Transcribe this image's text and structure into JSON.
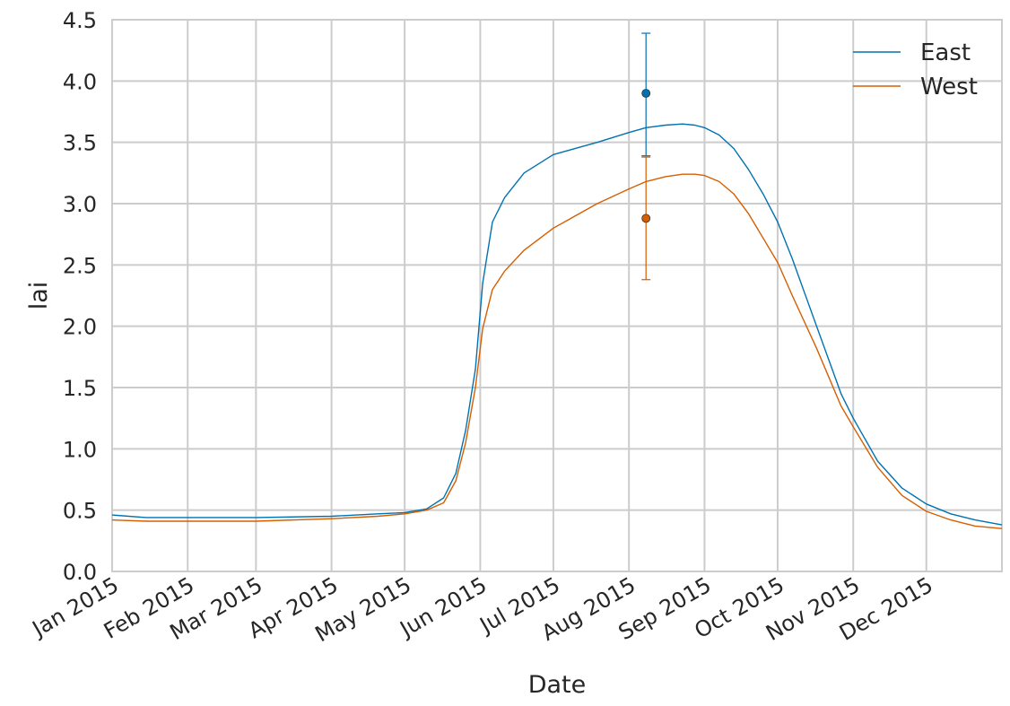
{
  "chart_data": {
    "type": "line",
    "title": "",
    "xlabel": "Date",
    "ylabel": "lai",
    "ylim": [
      0,
      4.5
    ],
    "yticks": [
      "0.0",
      "0.5",
      "1.0",
      "1.5",
      "2.0",
      "2.5",
      "3.0",
      "3.5",
      "4.0",
      "4.5"
    ],
    "xlim_day_of_year": [
      1,
      366
    ],
    "x_tick_labels": [
      "Jan 2015",
      "Feb 2015",
      "Mar 2015",
      "Apr 2015",
      "May 2015",
      "Jun 2015",
      "Jul 2015",
      "Aug 2015",
      "Sep 2015",
      "Oct 2015",
      "Nov 2015",
      "Dec 2015"
    ],
    "x_tick_days": [
      1,
      32,
      60,
      91,
      121,
      152,
      182,
      213,
      244,
      274,
      305,
      335
    ],
    "x_unit": "day of year 2015",
    "legend_position": "top-right",
    "series": [
      {
        "name": "East",
        "color": "#0072b2",
        "x": [
          1,
          15,
          32,
          60,
          91,
          110,
          121,
          130,
          137,
          142,
          146,
          150,
          153,
          157,
          162,
          170,
          182,
          200,
          213,
          220,
          228,
          235,
          240,
          244,
          250,
          256,
          262,
          268,
          274,
          280,
          290,
          300,
          305,
          315,
          325,
          335,
          345,
          355,
          366
        ],
        "y": [
          0.46,
          0.44,
          0.44,
          0.44,
          0.45,
          0.47,
          0.48,
          0.51,
          0.6,
          0.8,
          1.15,
          1.65,
          2.35,
          2.85,
          3.05,
          3.25,
          3.4,
          3.5,
          3.58,
          3.62,
          3.64,
          3.65,
          3.64,
          3.62,
          3.56,
          3.45,
          3.28,
          3.08,
          2.85,
          2.55,
          2.0,
          1.45,
          1.25,
          0.9,
          0.68,
          0.55,
          0.47,
          0.42,
          0.38
        ]
      },
      {
        "name": "West",
        "color": "#d55e00",
        "x": [
          1,
          15,
          32,
          60,
          91,
          110,
          121,
          130,
          137,
          142,
          146,
          150,
          153,
          157,
          162,
          170,
          182,
          200,
          213,
          220,
          228,
          235,
          240,
          244,
          250,
          256,
          262,
          268,
          274,
          280,
          290,
          300,
          305,
          315,
          325,
          335,
          345,
          355,
          366
        ],
        "y": [
          0.42,
          0.41,
          0.41,
          0.41,
          0.43,
          0.45,
          0.47,
          0.5,
          0.56,
          0.74,
          1.05,
          1.5,
          1.98,
          2.3,
          2.45,
          2.62,
          2.8,
          3.0,
          3.12,
          3.18,
          3.22,
          3.24,
          3.24,
          3.23,
          3.18,
          3.08,
          2.92,
          2.72,
          2.52,
          2.25,
          1.82,
          1.35,
          1.18,
          0.85,
          0.62,
          0.49,
          0.42,
          0.37,
          0.35
        ]
      }
    ],
    "observations": [
      {
        "series": "East",
        "color": "#0072b2",
        "x": 220,
        "y": 3.9,
        "error_low": 3.39,
        "error_high": 4.39
      },
      {
        "series": "West",
        "color": "#d55e00",
        "x": 220,
        "y": 2.88,
        "error_low": 2.38,
        "error_high": 3.38
      }
    ]
  }
}
